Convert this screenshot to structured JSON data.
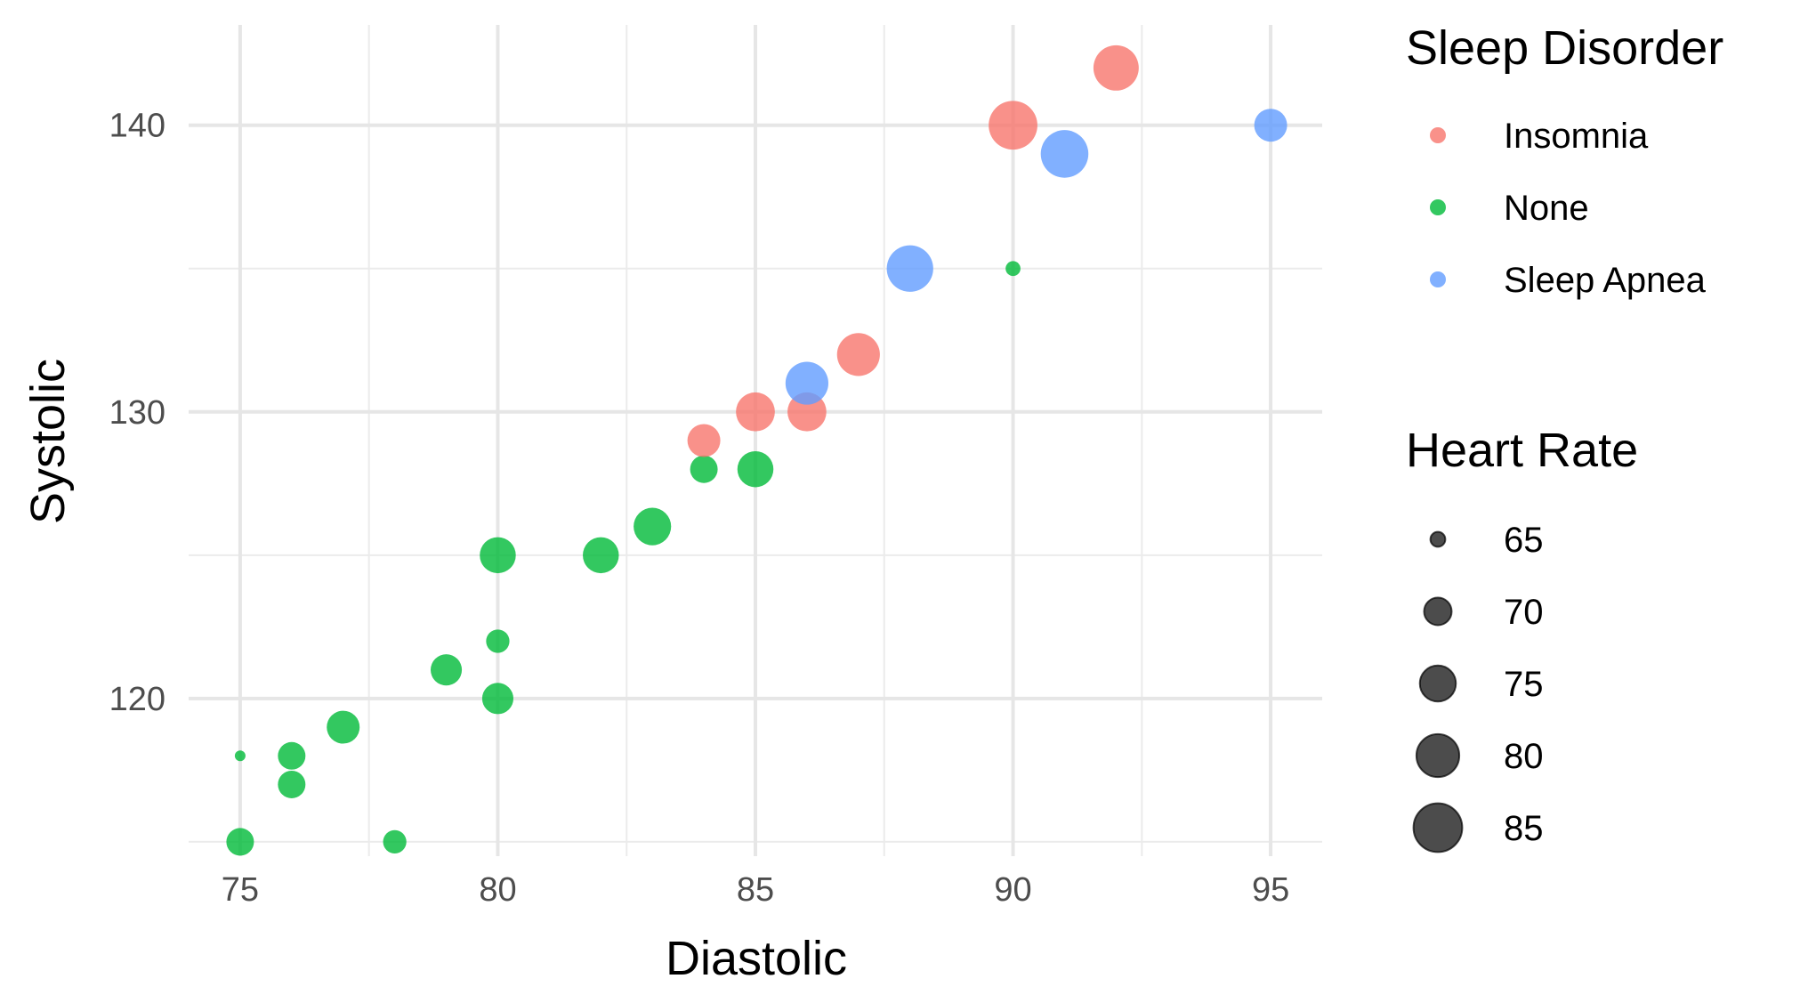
{
  "chart_data": {
    "type": "scatter",
    "xlabel": "Diastolic",
    "ylabel": "Systolic",
    "xlim": [
      74,
      96
    ],
    "ylim": [
      114.5,
      143.5
    ],
    "x_ticks": [
      75,
      80,
      85,
      90,
      95
    ],
    "x_tick_labels": [
      "75",
      "80",
      "85",
      "90",
      "95"
    ],
    "y_ticks": [
      120,
      130,
      140
    ],
    "y_tick_labels": [
      "120",
      "130",
      "140"
    ],
    "x_minor_ticks": [
      77.5,
      82.5,
      87.5,
      92.5
    ],
    "y_minor_ticks": [
      115,
      125,
      135
    ],
    "grid": true,
    "legend_position": "right",
    "color_legend": {
      "title": "Sleep Disorder",
      "items": [
        {
          "label": "Insomnia",
          "color": "#F8766D"
        },
        {
          "label": "None",
          "color": "#00BA38"
        },
        {
          "label": "Sleep Apnea",
          "color": "#619CFF"
        }
      ]
    },
    "size_legend": {
      "title": "Heart Rate",
      "items": [
        {
          "label": "65",
          "value": 65
        },
        {
          "label": "70",
          "value": 70
        },
        {
          "label": "75",
          "value": 75
        },
        {
          "label": "80",
          "value": 80
        },
        {
          "label": "85",
          "value": 85
        }
      ]
    },
    "size_range": [
      64,
      86
    ],
    "series": [
      {
        "name": "None",
        "color": "#00BA38",
        "points": [
          {
            "x": 75,
            "y": 118,
            "size": 64
          },
          {
            "x": 75,
            "y": 115,
            "size": 70
          },
          {
            "x": 76,
            "y": 118,
            "size": 70
          },
          {
            "x": 76,
            "y": 117,
            "size": 70
          },
          {
            "x": 77,
            "y": 119,
            "size": 73
          },
          {
            "x": 78,
            "y": 115,
            "size": 68
          },
          {
            "x": 79,
            "y": 121,
            "size": 72
          },
          {
            "x": 80,
            "y": 125,
            "size": 75
          },
          {
            "x": 80,
            "y": 122,
            "size": 68
          },
          {
            "x": 80,
            "y": 120,
            "size": 72
          },
          {
            "x": 82,
            "y": 125,
            "size": 75
          },
          {
            "x": 83,
            "y": 126,
            "size": 76
          },
          {
            "x": 84,
            "y": 128,
            "size": 70
          },
          {
            "x": 85,
            "y": 128,
            "size": 75
          },
          {
            "x": 90,
            "y": 135,
            "size": 65
          }
        ]
      },
      {
        "name": "Insomnia",
        "color": "#F8766D",
        "points": [
          {
            "x": 84,
            "y": 129,
            "size": 73
          },
          {
            "x": 85,
            "y": 130,
            "size": 77
          },
          {
            "x": 86,
            "y": 130,
            "size": 77
          },
          {
            "x": 87,
            "y": 132,
            "size": 80
          },
          {
            "x": 90,
            "y": 140,
            "size": 85
          },
          {
            "x": 92,
            "y": 142,
            "size": 82
          }
        ]
      },
      {
        "name": "Sleep Apnea",
        "color": "#619CFF",
        "points": [
          {
            "x": 86,
            "y": 131,
            "size": 80
          },
          {
            "x": 88,
            "y": 135,
            "size": 83
          },
          {
            "x": 91,
            "y": 139,
            "size": 84
          },
          {
            "x": 95,
            "y": 140,
            "size": 73
          }
        ]
      }
    ]
  }
}
